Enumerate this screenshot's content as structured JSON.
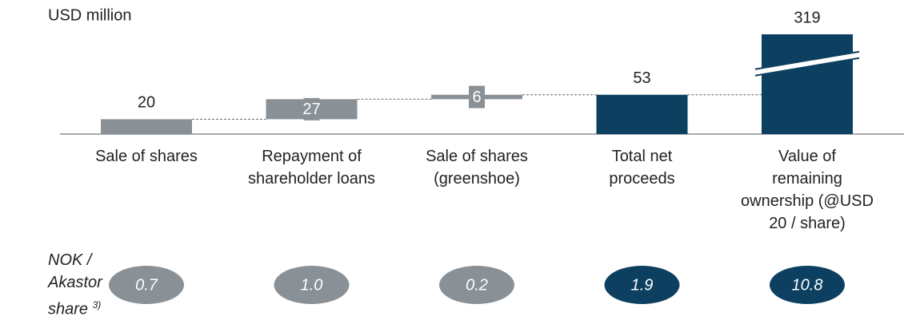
{
  "chart_data": {
    "type": "waterfall",
    "unit": "USD million",
    "categories": [
      "Sale of shares",
      "Repayment of\nshareholder loans",
      "Sale of shares\n(greenshoe)",
      "Total net\nproceeds",
      "Value of\nremaining\nownership (@USD\n20 / share)"
    ],
    "values": [
      20,
      27,
      6,
      53,
      319
    ],
    "kinds": [
      "increment",
      "increment",
      "increment",
      "total",
      "total"
    ],
    "axis_break": [
      false,
      false,
      false,
      false,
      true
    ],
    "color_increment": "#8a9196",
    "color_total": "#0d4060",
    "per_share_label": "NOK / Akastor share",
    "per_share_footnote": "3)",
    "per_share": {
      "values": [
        0.7,
        1,
        0.2,
        1.9,
        10.8
      ],
      "value_labels": [
        "0.7",
        "1.0",
        "0.2",
        "1.9",
        "10.8"
      ]
    }
  }
}
